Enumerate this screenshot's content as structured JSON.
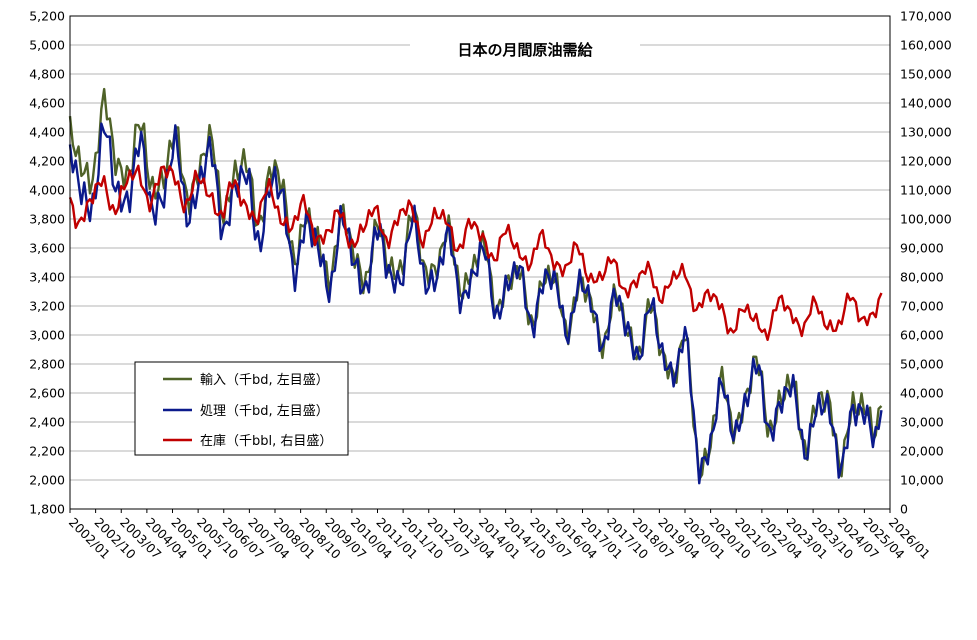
{
  "chart_data": {
    "type": "line",
    "title": "日本の月間原油需給",
    "y_left": {
      "min": 1800,
      "max": 5200,
      "step": 200
    },
    "y_right": {
      "min": 0,
      "max": 170000,
      "step": 10000
    },
    "x_ticks": [
      "2002/01",
      "2002/10",
      "2003/07",
      "2004/04",
      "2005/01",
      "2005/10",
      "2006/07",
      "2007/04",
      "2008/01",
      "2008/10",
      "2009/07",
      "2010/04",
      "2011/01",
      "2011/10",
      "2012/07",
      "2013/04",
      "2014/01",
      "2014/10",
      "2015/07",
      "2016/04",
      "2017/01",
      "2017/10",
      "2018/07",
      "2019/04",
      "2020/01",
      "2020/10",
      "2021/07",
      "2022/04",
      "2023/01",
      "2023/10",
      "2024/07",
      "2025/04",
      "2026/01"
    ],
    "x_start": "2002/01",
    "x_end": "2026/01",
    "grid": "horizontal",
    "legend_position": "lower-left",
    "legend": [
      {
        "label": "輸入（千bd, 左目盛）",
        "color": "#4f6228"
      },
      {
        "label": "処理（千bd, 左目盛）",
        "color": "#0b1a8c"
      },
      {
        "label": "在庫（千bbl, 右目盛）",
        "color": "#c00000"
      }
    ],
    "series": [
      {
        "key": "import",
        "axis": "left",
        "color": "#4f6228",
        "annual_knots": [
          [
            "2002/01",
            4150
          ],
          [
            "2003/01",
            4350
          ],
          [
            "2004/01",
            4200
          ],
          [
            "2005/01",
            4150
          ],
          [
            "2006/01",
            4150
          ],
          [
            "2007/01",
            4020
          ],
          [
            "2008/01",
            4000
          ],
          [
            "2009/01",
            3600
          ],
          [
            "2010/01",
            3620
          ],
          [
            "2011/01",
            3520
          ],
          [
            "2012/01",
            3620
          ],
          [
            "2013/01",
            3520
          ],
          [
            "2014/01",
            3450
          ],
          [
            "2015/01",
            3300
          ],
          [
            "2016/01",
            3280
          ],
          [
            "2017/01",
            3200
          ],
          [
            "2018/01",
            3080
          ],
          [
            "2019/01",
            3000
          ],
          [
            "2020/01",
            2800
          ],
          [
            "2020/06",
            2180
          ],
          [
            "2021/01",
            2450
          ],
          [
            "2022/01",
            2620
          ],
          [
            "2023/01",
            2500
          ],
          [
            "2024/01",
            2420
          ],
          [
            "2025/01",
            2330
          ],
          [
            "2025/10",
            2650
          ]
        ],
        "amp": [
          [
            "2002/01",
            280
          ],
          [
            "2008/01",
            260
          ],
          [
            "2012/01",
            240
          ],
          [
            "2016/01",
            220
          ],
          [
            "2020/01",
            230
          ],
          [
            "2024/01",
            260
          ],
          [
            "2025/10",
            260
          ]
        ]
      },
      {
        "key": "process",
        "axis": "left",
        "color": "#0b1a8c",
        "annual_knots": [
          [
            "2002/01",
            4000
          ],
          [
            "2003/01",
            4150
          ],
          [
            "2004/01",
            4050
          ],
          [
            "2005/01",
            4050
          ],
          [
            "2006/01",
            4050
          ],
          [
            "2007/01",
            3920
          ],
          [
            "2008/01",
            3900
          ],
          [
            "2009/01",
            3550
          ],
          [
            "2010/01",
            3570
          ],
          [
            "2011/01",
            3480
          ],
          [
            "2012/01",
            3550
          ],
          [
            "2013/01",
            3460
          ],
          [
            "2014/01",
            3400
          ],
          [
            "2015/01",
            3300
          ],
          [
            "2016/01",
            3270
          ],
          [
            "2017/01",
            3200
          ],
          [
            "2018/01",
            3080
          ],
          [
            "2019/01",
            3000
          ],
          [
            "2020/01",
            2800
          ],
          [
            "2020/06",
            2200
          ],
          [
            "2021/01",
            2420
          ],
          [
            "2022/01",
            2600
          ],
          [
            "2023/01",
            2480
          ],
          [
            "2024/01",
            2380
          ],
          [
            "2025/01",
            2300
          ],
          [
            "2025/10",
            2600
          ]
        ],
        "amp": [
          [
            "2002/01",
            300
          ],
          [
            "2008/01",
            290
          ],
          [
            "2012/01",
            260
          ],
          [
            "2016/01",
            230
          ],
          [
            "2020/01",
            230
          ],
          [
            "2024/01",
            250
          ],
          [
            "2025/10",
            250
          ]
        ]
      },
      {
        "key": "stock",
        "axis": "right",
        "color": "#c00000",
        "annual_knots": [
          [
            "2002/01",
            103000
          ],
          [
            "2003/01",
            108000
          ],
          [
            "2004/01",
            112000
          ],
          [
            "2005/01",
            113000
          ],
          [
            "2006/01",
            108000
          ],
          [
            "2007/01",
            106000
          ],
          [
            "2008/01",
            104000
          ],
          [
            "2009/01",
            98000
          ],
          [
            "2010/01",
            96000
          ],
          [
            "2011/01",
            98000
          ],
          [
            "2012/01",
            100000
          ],
          [
            "2013/01",
            97000
          ],
          [
            "2014/01",
            93000
          ],
          [
            "2015/01",
            90000
          ],
          [
            "2016/01",
            88000
          ],
          [
            "2017/01",
            84000
          ],
          [
            "2018/01",
            80000
          ],
          [
            "2019/01",
            78000
          ],
          [
            "2020/01",
            78000
          ],
          [
            "2021/01",
            68000
          ],
          [
            "2022/01",
            64000
          ],
          [
            "2023/01",
            68000
          ],
          [
            "2024/01",
            65000
          ],
          [
            "2025/01",
            68000
          ],
          [
            "2025/10",
            70000
          ]
        ],
        "amp": [
          [
            "2002/01",
            7000
          ],
          [
            "2010/01",
            7000
          ],
          [
            "2018/01",
            6000
          ],
          [
            "2025/10",
            6000
          ]
        ]
      }
    ]
  }
}
